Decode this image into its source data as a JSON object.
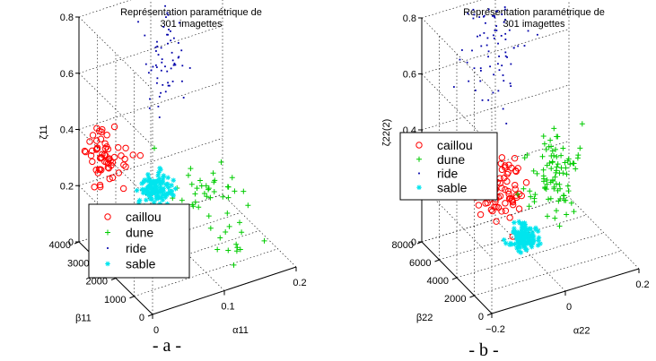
{
  "figure": {
    "captions": [
      "- a -",
      "- b -"
    ]
  },
  "chart_data": [
    {
      "type": "scatter",
      "projection": "3d",
      "title": "Représentation paramétrique de\n301 imagettes",
      "xlabel": "α11",
      "ylabel": "β11",
      "zlabel": "ζ11",
      "xlim": [
        0,
        0.2
      ],
      "ylim": [
        0,
        4000
      ],
      "zlim": [
        0,
        0.8
      ],
      "xticks": [
        "0",
        "0.1",
        "0.2"
      ],
      "yticks": [
        "0",
        "1000",
        "2000",
        "3000",
        "4000"
      ],
      "zticks": [
        "0",
        "0.2",
        "0.4",
        "0.6",
        "0.8"
      ],
      "grid": true,
      "legend_position": "lower-left",
      "series": [
        {
          "name": "caillou",
          "marker": "circle",
          "color": "#ff0000"
        },
        {
          "name": "dune",
          "marker": "plus",
          "color": "#00cc00"
        },
        {
          "name": "ride",
          "marker": "dot",
          "color": "#0000aa"
        },
        {
          "name": "sable",
          "marker": "asterisk",
          "color": "#00e5ee"
        }
      ]
    },
    {
      "type": "scatter",
      "projection": "3d",
      "title": "Représentation paramétrique de\n301 imagettes",
      "xlabel": "α22",
      "ylabel": "β22",
      "zlabel": "ζ22(2)",
      "xlim": [
        -0.2,
        0.2
      ],
      "ylim": [
        0,
        8000
      ],
      "zlim": [
        0,
        0.8
      ],
      "xticks": [
        "−0.2",
        "0",
        "0.2"
      ],
      "yticks": [
        "0",
        "2000",
        "4000",
        "6000",
        "8000"
      ],
      "zticks": [
        "0",
        "0.2",
        "0.4",
        "0.6",
        "0.8"
      ],
      "grid": true,
      "legend_position": "upper-left",
      "series": [
        {
          "name": "caillou",
          "marker": "circle",
          "color": "#ff0000"
        },
        {
          "name": "dune",
          "marker": "plus",
          "color": "#00cc00"
        },
        {
          "name": "ride",
          "marker": "dot",
          "color": "#0000aa"
        },
        {
          "name": "sable",
          "marker": "asterisk",
          "color": "#00e5ee"
        }
      ]
    }
  ]
}
